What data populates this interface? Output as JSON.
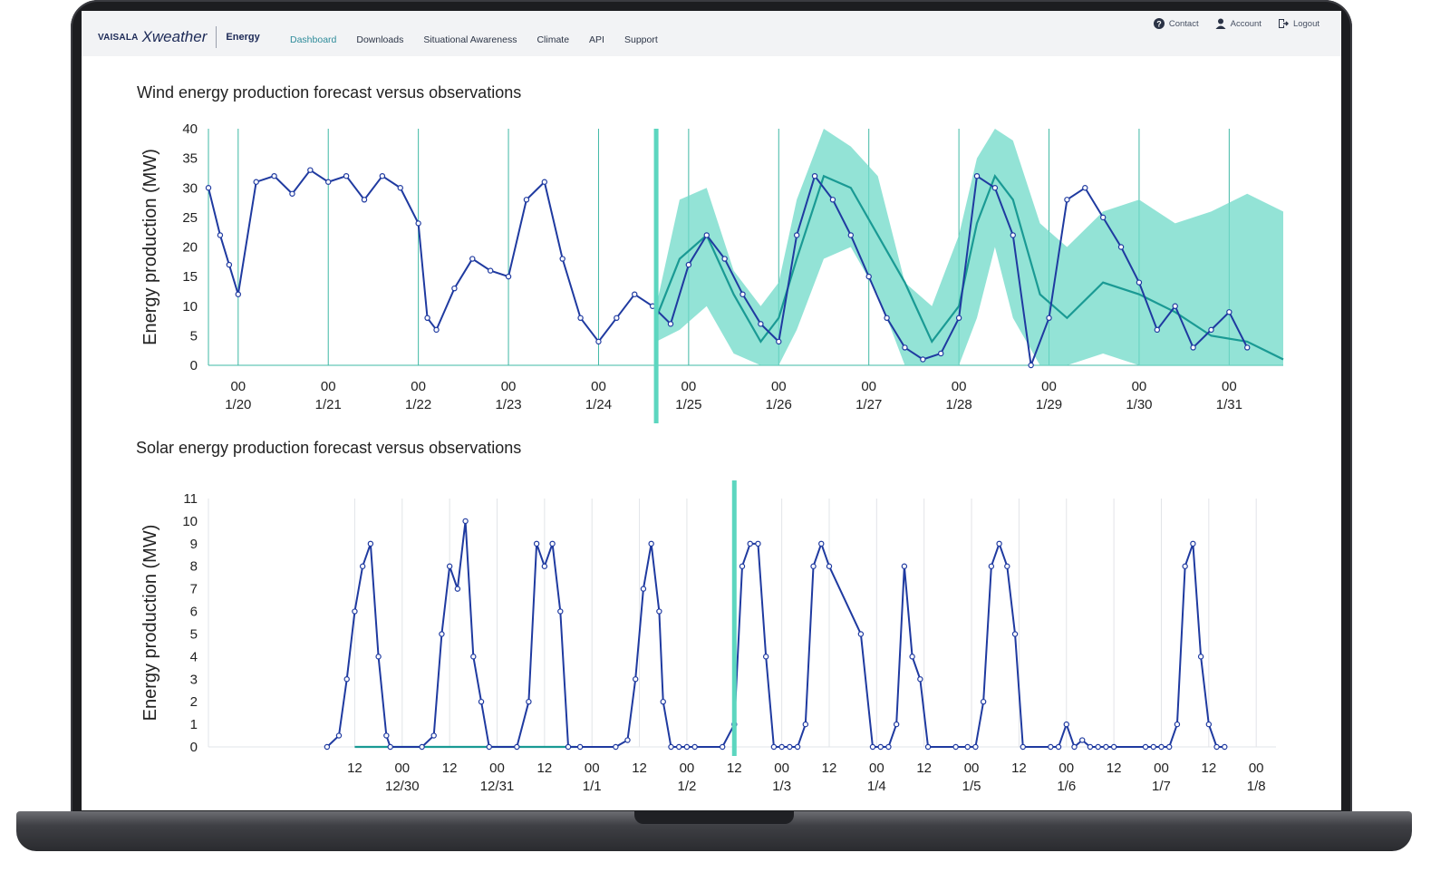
{
  "brand": {
    "company": "VAISALA",
    "product_line": "Xweather",
    "module": "Energy"
  },
  "nav": [
    {
      "label": "Dashboard",
      "active": true
    },
    {
      "label": "Downloads"
    },
    {
      "label": "Situational Awareness"
    },
    {
      "label": "Climate"
    },
    {
      "label": "API"
    },
    {
      "label": "Support"
    }
  ],
  "utility": [
    {
      "label": "Contact",
      "icon": "question-circle-icon"
    },
    {
      "label": "Account",
      "icon": "user-icon"
    },
    {
      "label": "Logout",
      "icon": "logout-icon"
    }
  ],
  "colors": {
    "observation": "#1f3aa0",
    "forecast": "#1a9a94",
    "band": "#6fd9c8",
    "gridline": "#3fb8a4",
    "nowline": "#5cd6bf"
  },
  "chart_data": [
    {
      "type": "line",
      "title": "Wind energy production forecast versus observations",
      "ylabel": "Energy production (MW)",
      "ylim": [
        0,
        40
      ],
      "yticks": [
        0,
        5,
        10,
        15,
        20,
        25,
        30,
        35,
        40
      ],
      "x_unit": "day",
      "xlim": [
        -0.33,
        11.6
      ],
      "now_x": 4.64,
      "xticks": [
        {
          "x": 0,
          "hour": "00",
          "date": "1/20"
        },
        {
          "x": 1,
          "hour": "00",
          "date": "1/21"
        },
        {
          "x": 2,
          "hour": "00",
          "date": "1/22"
        },
        {
          "x": 3,
          "hour": "00",
          "date": "1/23"
        },
        {
          "x": 4,
          "hour": "00",
          "date": "1/24"
        },
        {
          "x": 5,
          "hour": "00",
          "date": "1/25"
        },
        {
          "x": 6,
          "hour": "00",
          "date": "1/26"
        },
        {
          "x": 7,
          "hour": "00",
          "date": "1/27"
        },
        {
          "x": 8,
          "hour": "00",
          "date": "1/28"
        },
        {
          "x": 9,
          "hour": "00",
          "date": "1/29"
        },
        {
          "x": 10,
          "hour": "00",
          "date": "1/30"
        },
        {
          "x": 11,
          "hour": "00",
          "date": "1/31"
        }
      ],
      "series": [
        {
          "role": "observation",
          "x": [
            -0.33,
            -0.2,
            -0.1,
            0,
            0.2,
            0.4,
            0.6,
            0.8,
            1,
            1.2,
            1.4,
            1.6,
            1.8,
            2,
            2.1,
            2.2,
            2.4,
            2.6,
            2.8,
            3,
            3.2,
            3.4,
            3.6,
            3.8,
            4,
            4.2,
            4.4,
            4.6,
            4.8,
            5,
            5.2,
            5.4,
            5.6,
            5.8,
            6,
            6.2,
            6.4,
            6.6,
            6.8,
            7,
            7.2,
            7.4,
            7.6,
            7.8,
            8,
            8.2,
            8.4,
            8.6,
            8.8,
            9,
            9.2,
            9.4,
            9.6,
            9.8,
            10,
            10.2,
            10.4,
            10.6,
            10.8,
            11,
            11.2
          ],
          "y": [
            30,
            22,
            17,
            12,
            31,
            32,
            29,
            33,
            31,
            32,
            28,
            32,
            30,
            24,
            8,
            6,
            13,
            18,
            16,
            15,
            28,
            31,
            18,
            8,
            4,
            8,
            12,
            10,
            7,
            17,
            22,
            18,
            12,
            7,
            4,
            22,
            32,
            28,
            22,
            15,
            8,
            3,
            1,
            2,
            8,
            32,
            30,
            22,
            0,
            8,
            28,
            30,
            25,
            20,
            14,
            6,
            10,
            3,
            6,
            9,
            3
          ]
        },
        {
          "role": "forecast",
          "x": [
            4.64,
            4.9,
            5.2,
            5.5,
            5.8,
            6.0,
            6.2,
            6.5,
            6.8,
            7.1,
            7.4,
            7.7,
            8.0,
            8.2,
            8.4,
            8.6,
            8.9,
            9.2,
            9.6,
            10.0,
            10.4,
            10.8,
            11.2,
            11.6
          ],
          "y": [
            8,
            18,
            22,
            12,
            4,
            8,
            18,
            32,
            30,
            22,
            14,
            4,
            10,
            24,
            32,
            28,
            12,
            8,
            14,
            12,
            9,
            5,
            4,
            1
          ]
        },
        {
          "role": "band",
          "x": [
            4.64,
            4.9,
            5.2,
            5.5,
            5.8,
            6.0,
            6.2,
            6.5,
            6.8,
            7.1,
            7.4,
            7.7,
            8.0,
            8.2,
            8.4,
            8.6,
            8.9,
            9.2,
            9.6,
            10.0,
            10.4,
            10.8,
            11.2,
            11.6
          ],
          "lo": [
            4,
            6,
            10,
            2,
            0,
            0,
            6,
            18,
            20,
            12,
            0,
            0,
            0,
            8,
            20,
            8,
            0,
            0,
            2,
            0,
            0,
            0,
            0,
            0
          ],
          "hi": [
            10,
            28,
            30,
            16,
            10,
            14,
            28,
            40,
            37,
            32,
            14,
            10,
            22,
            35,
            40,
            38,
            24,
            20,
            26,
            28,
            24,
            26,
            29,
            26
          ]
        }
      ]
    },
    {
      "type": "line",
      "title": "Solar energy production forecast versus observations",
      "ylabel": "Energy production (MW)",
      "ylim": [
        0,
        11
      ],
      "yticks": [
        0,
        1,
        2,
        3,
        4,
        5,
        6,
        7,
        8,
        9,
        10,
        11
      ],
      "x_unit": "hour",
      "xlim": [
        -37,
        233
      ],
      "now_x": 96,
      "xticks": [
        {
          "x": 0,
          "label": "12",
          "date": ""
        },
        {
          "x": 12,
          "label": "00",
          "date": "12/30"
        },
        {
          "x": 24,
          "label": "12",
          "date": ""
        },
        {
          "x": 36,
          "label": "00",
          "date": "12/31"
        },
        {
          "x": 48,
          "label": "12",
          "date": ""
        },
        {
          "x": 60,
          "label": "00",
          "date": "1/1"
        },
        {
          "x": 72,
          "label": "12",
          "date": ""
        },
        {
          "x": 84,
          "label": "00",
          "date": "1/2"
        },
        {
          "x": 96,
          "label": "12",
          "date": ""
        },
        {
          "x": 108,
          "label": "00",
          "date": "1/3"
        },
        {
          "x": 120,
          "label": "12",
          "date": ""
        },
        {
          "x": 132,
          "label": "00",
          "date": "1/4"
        },
        {
          "x": 144,
          "label": "12",
          "date": ""
        },
        {
          "x": 156,
          "label": "00",
          "date": "1/5"
        },
        {
          "x": 168,
          "label": "12",
          "date": ""
        },
        {
          "x": 180,
          "label": "00",
          "date": "1/6"
        },
        {
          "x": 192,
          "label": "12",
          "date": ""
        },
        {
          "x": 204,
          "label": "00",
          "date": "1/7"
        },
        {
          "x": 216,
          "label": "12",
          "date": ""
        },
        {
          "x": 228,
          "label": "00",
          "date": "1/8"
        }
      ],
      "series": [
        {
          "role": "observation",
          "x": [
            -7,
            -4,
            -2,
            0,
            2,
            4,
            6,
            8,
            9,
            17,
            20,
            22,
            24,
            26,
            28,
            30,
            32,
            34,
            41,
            44,
            46,
            48,
            50,
            52,
            54,
            57,
            66,
            69,
            71,
            73,
            75,
            77,
            78,
            80,
            82,
            84,
            86,
            93,
            96,
            98,
            100,
            102,
            104,
            106,
            108,
            110,
            112,
            114,
            116,
            118,
            120,
            128,
            131,
            133,
            135,
            137,
            139,
            141,
            143,
            145,
            152,
            155,
            157,
            159,
            161,
            163,
            165,
            167,
            169,
            176,
            178,
            180,
            182,
            184,
            186,
            188,
            190,
            192,
            200,
            202,
            204,
            206,
            208,
            210,
            212,
            214,
            216,
            218,
            220
          ],
          "y": [
            0,
            0.5,
            3,
            6,
            8,
            9,
            4,
            0.5,
            0,
            0,
            0.5,
            5,
            8,
            7,
            10,
            4,
            2,
            0,
            0,
            2,
            9,
            8,
            9,
            6,
            0,
            0,
            0,
            0.3,
            3,
            7,
            9,
            6,
            2,
            0,
            0,
            0,
            0,
            0,
            1,
            8,
            9,
            9,
            4,
            0,
            0,
            0,
            0,
            1,
            8,
            9,
            8,
            5,
            0,
            0,
            0,
            1,
            8,
            4,
            3,
            0,
            0,
            0,
            0,
            2,
            8,
            9,
            8,
            5,
            0,
            0,
            0,
            1,
            0,
            0.3,
            0,
            0,
            0,
            0,
            0,
            0,
            0,
            0,
            1,
            8,
            9,
            4,
            1,
            0,
            0
          ]
        },
        {
          "role": "forecast",
          "x": [
            0,
            2,
            4,
            6,
            8,
            10,
            12,
            14,
            16,
            18,
            20,
            22,
            24,
            26,
            28,
            30,
            32,
            34,
            36,
            38,
            40,
            42,
            44,
            46,
            48,
            50,
            52,
            54,
            56
          ],
          "y": [
            0,
            0,
            0,
            0,
            0,
            0,
            0,
            0,
            0,
            0,
            0,
            0,
            0,
            0,
            0,
            0,
            0,
            0,
            0,
            0,
            0,
            0,
            0,
            0,
            0,
            0,
            0,
            0,
            0
          ]
        },
        {
          "role": "band",
          "x": [
            0
          ],
          "lo": [
            0
          ],
          "hi": [
            0
          ]
        }
      ]
    }
  ]
}
